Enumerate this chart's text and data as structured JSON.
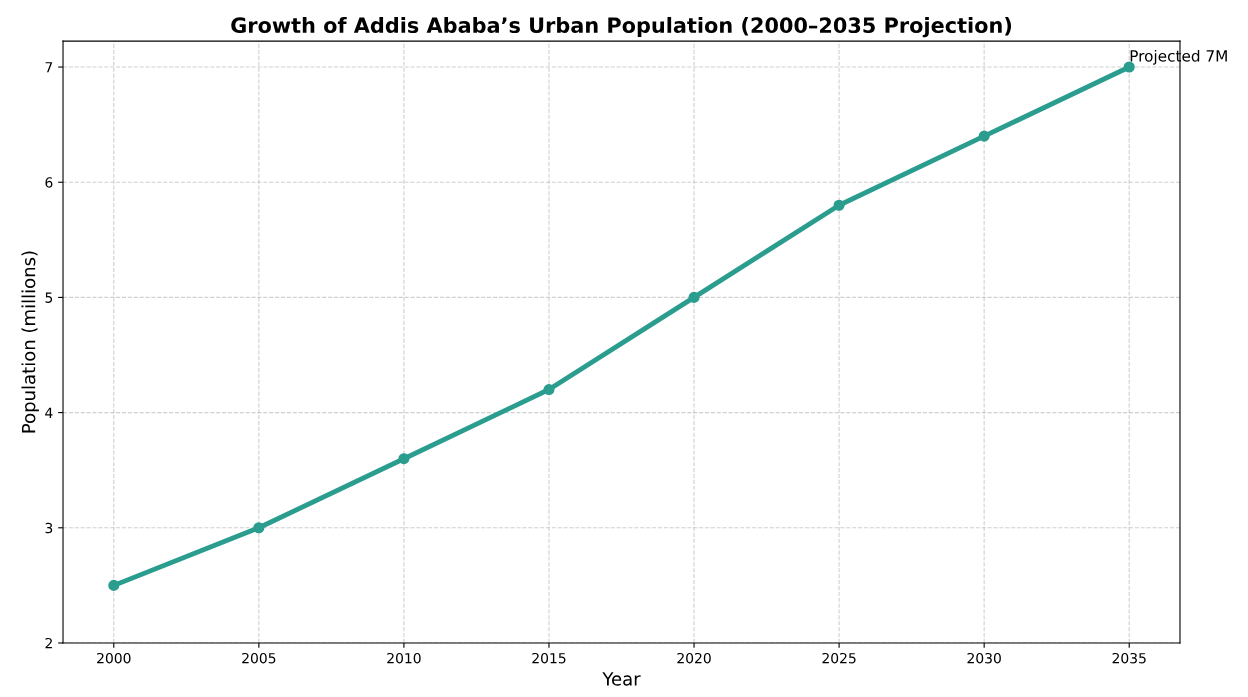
{
  "chart_data": {
    "type": "line",
    "title": "Growth of Addis Ababa’s Urban Population (2000–2035 Projection)",
    "xlabel": "Year",
    "ylabel": "Population (millions)",
    "x": [
      2000,
      2005,
      2010,
      2015,
      2020,
      2025,
      2030,
      2035
    ],
    "series": [
      {
        "color": "#2a9d8f",
        "values": [
          2.5,
          3.0,
          3.6,
          4.2,
          5.0,
          5.8,
          6.4,
          7.0
        ]
      }
    ],
    "xlim": [
      1998.25,
      2036.75
    ],
    "xticks": [
      2000,
      2005,
      2010,
      2015,
      2020,
      2025,
      2030,
      2035
    ],
    "ylim": [
      2,
      7.225
    ],
    "yticks": [
      2,
      3,
      4,
      5,
      6,
      7
    ],
    "annotations": [
      {
        "text": "Projected 7M",
        "x": 2035,
        "y": 7.0
      }
    ],
    "grid": true,
    "marker": "circle",
    "line_style": "solid"
  }
}
